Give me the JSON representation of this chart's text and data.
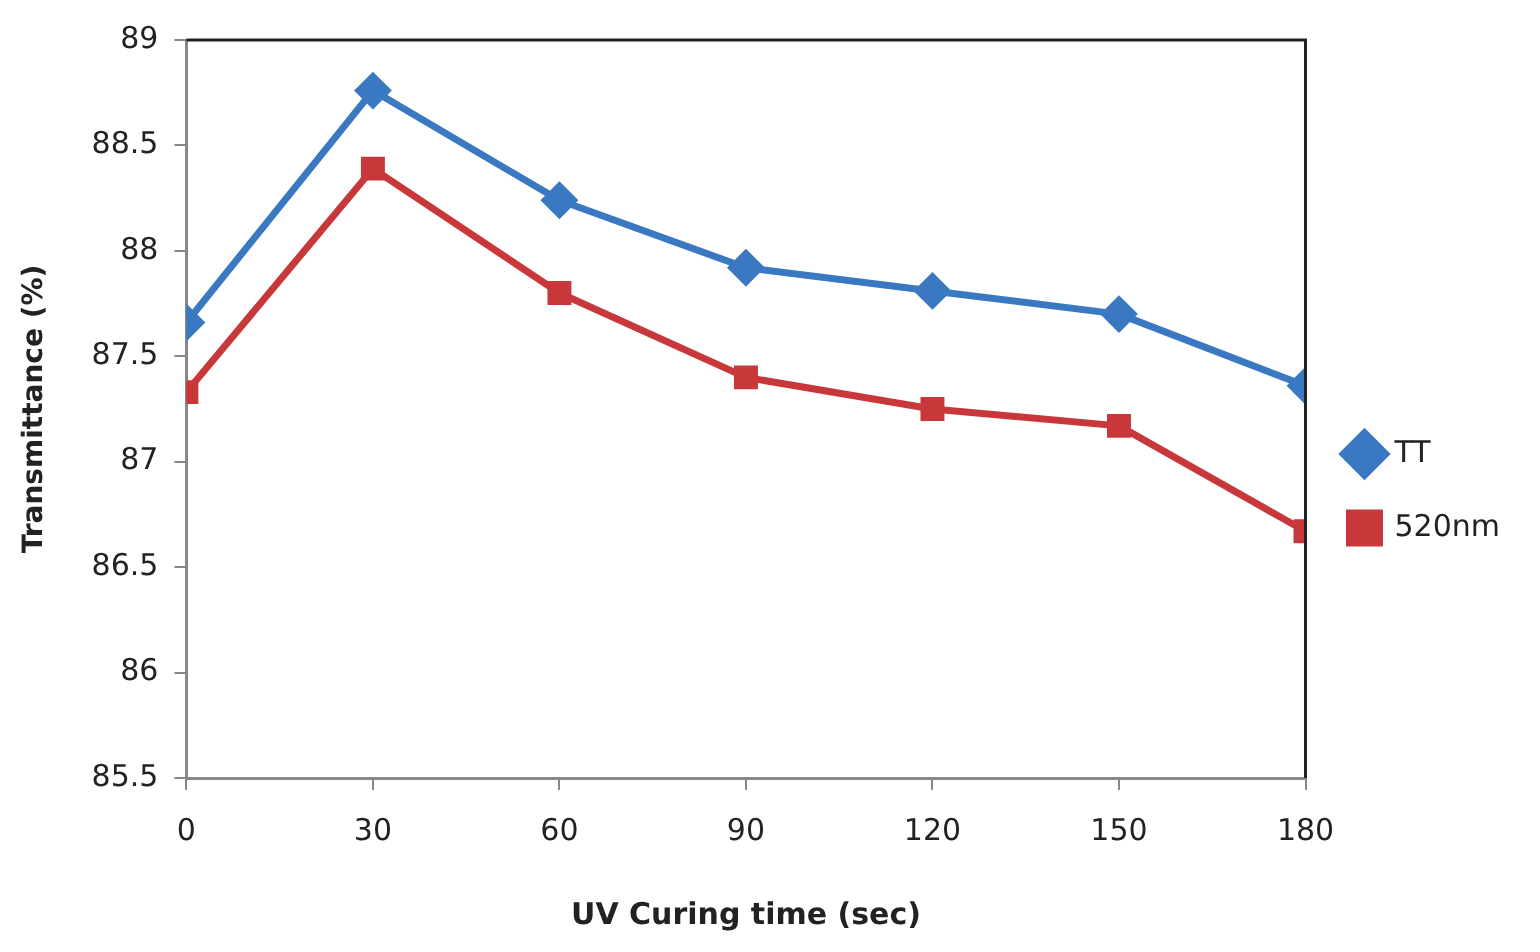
{
  "chart_data": {
    "type": "line",
    "xlabel": "UV Curing time (sec)",
    "ylabel": "Transmittance (%)",
    "x": [
      0,
      30,
      60,
      90,
      120,
      150,
      180
    ],
    "xlim": [
      0,
      180
    ],
    "xticks": [
      0,
      30,
      60,
      90,
      120,
      150,
      180
    ],
    "ylim": [
      85.5,
      89
    ],
    "yticks": [
      85.5,
      86,
      86.5,
      87,
      87.5,
      88,
      88.5,
      89
    ],
    "series": [
      {
        "name": "TT",
        "color": "#3a78c2",
        "marker": "diamond",
        "values": [
          87.66,
          88.76,
          88.24,
          87.92,
          87.81,
          87.7,
          87.36
        ]
      },
      {
        "name": "520nm",
        "color": "#c8383a",
        "marker": "square",
        "values": [
          87.33,
          88.39,
          87.8,
          87.4,
          87.25,
          87.17,
          86.67
        ]
      }
    ],
    "grid": false,
    "legend": "right",
    "line_style": "solid"
  }
}
